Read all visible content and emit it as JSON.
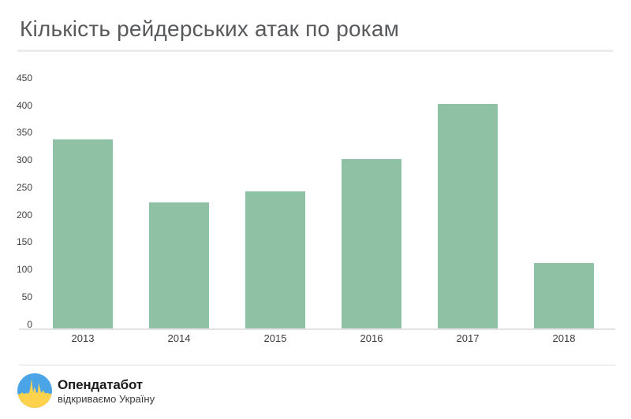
{
  "header": {
    "title": "Кількість рейдерських атак по рокам"
  },
  "chart_data": {
    "type": "bar",
    "title": "Кількість рейдерських атак по рокам",
    "categories": [
      "2013",
      "2014",
      "2015",
      "2016",
      "2017",
      "2018"
    ],
    "values": [
      345,
      230,
      250,
      310,
      410,
      120
    ],
    "xlabel": "",
    "ylabel": "",
    "ylim": [
      0,
      450
    ],
    "yticks": [
      0,
      50,
      100,
      150,
      200,
      250,
      300,
      350,
      400,
      450
    ],
    "grid": false,
    "legend": false,
    "bar_color": "#8fc2a4",
    "axis_line_color": "#e3e3e3",
    "tick_label_color": "#414141"
  },
  "footer": {
    "brand_name": "Опендатабот",
    "brand_tagline": "відкриваємо Україну",
    "logo_colors": {
      "blue": "#4aa4e6",
      "yellow": "#ffd24d"
    }
  }
}
